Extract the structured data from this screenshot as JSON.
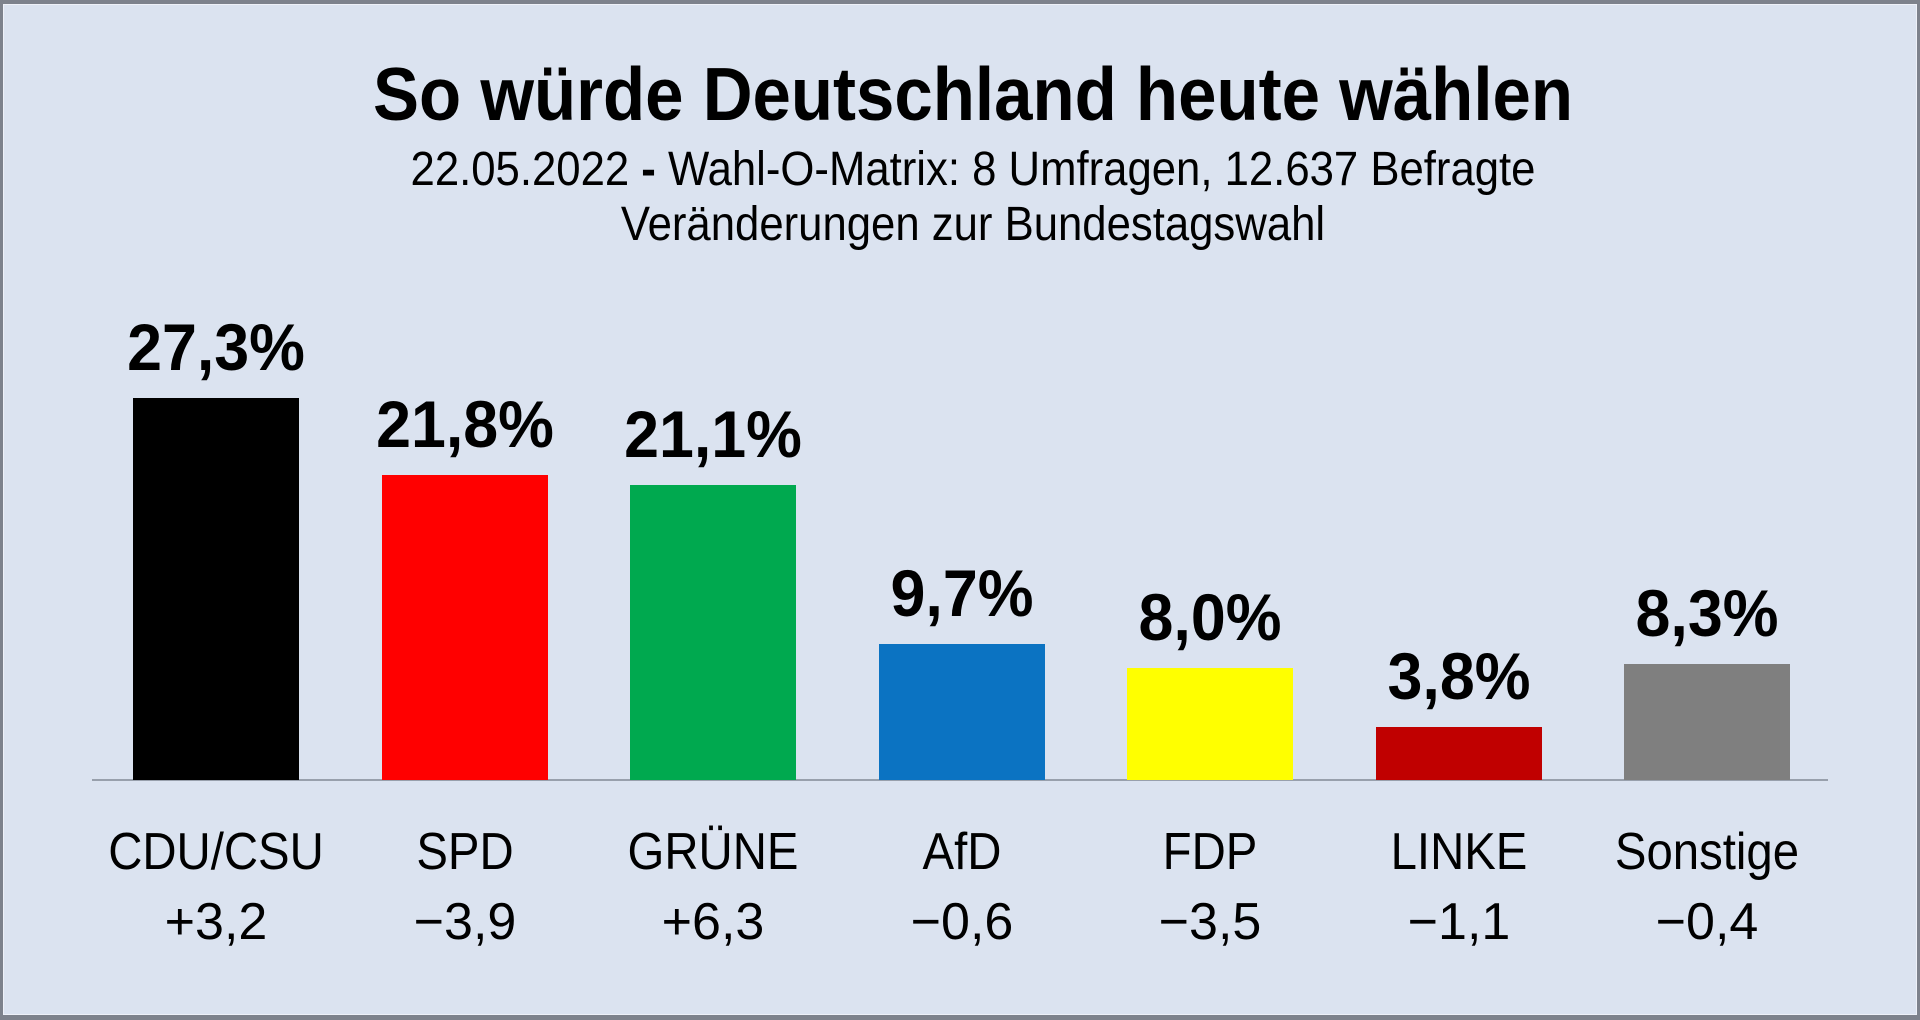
{
  "title": "So würde Deutschland heute wählen",
  "subtitle": {
    "date": "22.05.2022",
    "dash": "-",
    "info": "Wahl-O-Matrix: 8 Umfragen, 12.637 Befragte",
    "line2": "Veränderungen zur Bundestagswahl"
  },
  "chart_data": {
    "type": "bar",
    "categories": [
      "CDU/CSU",
      "SPD",
      "GRÜNE",
      "AfD",
      "FDP",
      "LINKE",
      "Sonstige"
    ],
    "values": [
      27.3,
      21.8,
      21.1,
      9.7,
      8.0,
      3.8,
      8.3
    ],
    "value_labels": [
      "27,3%",
      "21,8%",
      "21,1%",
      "9,7%",
      "8,0%",
      "3,8%",
      "8,3%"
    ],
    "changes": [
      "+3,2",
      "−3,9",
      "+6,3",
      "−0,6",
      "−3,5",
      "−1,1",
      "−0,4"
    ],
    "bar_colors": [
      "#000000",
      "#ff0000",
      "#00a94f",
      "#0b73c2",
      "#ffff00",
      "#c00000",
      "#7f7f7f"
    ],
    "title": "So würde Deutschland heute wählen",
    "xlabel": "",
    "ylabel": "",
    "ylim": [
      0,
      30
    ],
    "grid": false,
    "legend": false,
    "background_color": "#dbe3f0",
    "baseline_color": "#98a0ac"
  }
}
